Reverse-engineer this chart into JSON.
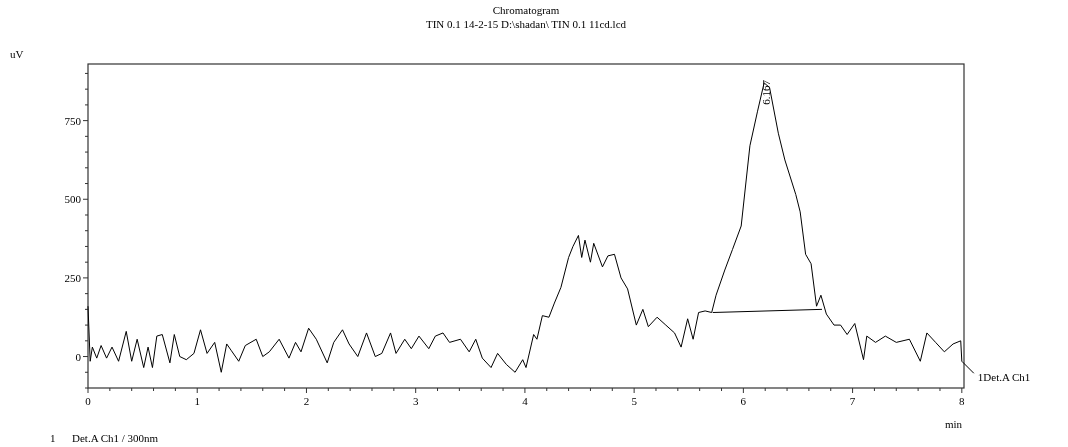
{
  "chart_data": {
    "type": "line",
    "title": "Chromatogram",
    "subtitle": "TIN 0.1 14-2-15 D:\\shadan\\ TIN 0.1 11cd.lcd",
    "xlabel": "min",
    "ylabel": "uV",
    "xlim": [
      0,
      8.02
    ],
    "ylim": [
      -100,
      930
    ],
    "xticks": [
      0,
      {
        "value": 0.2,
        "label": null
      },
      {
        "value": 0.4,
        "label": null
      },
      {
        "value": 0.6,
        "label": null
      },
      {
        "value": 0.8,
        "label": null
      },
      1,
      {
        "value": 1.2,
        "label": null
      },
      {
        "value": 1.4,
        "label": null
      },
      {
        "value": 1.6,
        "label": null
      },
      {
        "value": 1.8,
        "label": null
      },
      2,
      {
        "value": 2.2,
        "label": null
      },
      {
        "value": 2.4,
        "label": null
      },
      {
        "value": 2.6,
        "label": null
      },
      {
        "value": 2.8,
        "label": null
      },
      3,
      {
        "value": 3.2,
        "label": null
      },
      {
        "value": 3.4,
        "label": null
      },
      {
        "value": 3.6,
        "label": null
      },
      {
        "value": 3.8,
        "label": null
      },
      4,
      {
        "value": 4.2,
        "label": null
      },
      {
        "value": 4.4,
        "label": null
      },
      {
        "value": 4.6,
        "label": null
      },
      {
        "value": 4.8,
        "label": null
      },
      5,
      {
        "value": 5.2,
        "label": null
      },
      {
        "value": 5.4,
        "label": null
      },
      {
        "value": 5.6,
        "label": null
      },
      {
        "value": 5.8,
        "label": null
      },
      6,
      {
        "value": 6.2,
        "label": null
      },
      {
        "value": 6.4,
        "label": null
      },
      {
        "value": 6.6,
        "label": null
      },
      {
        "value": 6.8,
        "label": null
      },
      7,
      {
        "value": 7.2,
        "label": null
      },
      {
        "value": 7.4,
        "label": null
      },
      {
        "value": 7.6,
        "label": null
      },
      {
        "value": 7.8,
        "label": null
      },
      8
    ],
    "yticks": [
      {
        "value": -100,
        "label": null
      },
      {
        "value": -50,
        "label": null
      },
      0,
      {
        "value": 50,
        "label": null
      },
      {
        "value": 100,
        "label": null
      },
      {
        "value": 150,
        "label": null
      },
      {
        "value": 200,
        "label": null
      },
      250,
      {
        "value": 300,
        "label": null
      },
      {
        "value": 350,
        "label": null
      },
      {
        "value": 400,
        "label": null
      },
      {
        "value": 450,
        "label": null
      },
      500,
      {
        "value": 550,
        "label": null
      },
      {
        "value": 600,
        "label": null
      },
      {
        "value": 650,
        "label": null
      },
      {
        "value": 700,
        "label": null
      },
      750,
      {
        "value": 800,
        "label": null
      },
      {
        "value": 850,
        "label": null
      },
      {
        "value": 900,
        "label": null
      }
    ],
    "grid": false,
    "legend": "right",
    "marker": "none",
    "line_style": "solid",
    "series": [
      {
        "name": "1Det.A Ch1",
        "color": "#000000",
        "x": [
          0,
          0.02,
          0.04,
          0.08,
          0.12,
          0.17,
          0.22,
          0.28,
          0.35,
          0.4,
          0.45,
          0.51,
          0.55,
          0.59,
          0.63,
          0.68,
          0.75,
          0.79,
          0.84,
          0.9,
          0.97,
          1.03,
          1.09,
          1.16,
          1.22,
          1.27,
          1.31,
          1.38,
          1.44,
          1.54,
          1.6,
          1.66,
          1.75,
          1.84,
          1.9,
          1.95,
          2.02,
          2.09,
          2.19,
          2.25,
          2.33,
          2.39,
          2.47,
          2.55,
          2.63,
          2.69,
          2.77,
          2.82,
          2.9,
          2.96,
          3.03,
          3.12,
          3.18,
          3.25,
          3.31,
          3.41,
          3.49,
          3.55,
          3.61,
          3.69,
          3.75,
          3.83,
          3.91,
          3.98,
          4.01,
          4.08,
          4.11,
          4.16,
          4.22,
          4.27,
          4.33,
          4.4,
          4.44,
          4.49,
          4.52,
          4.55,
          4.6,
          4.63,
          4.71,
          4.76,
          4.82,
          4.88,
          4.94,
          5.02,
          5.08,
          5.13,
          5.21,
          5.29,
          5.37,
          5.43,
          5.49,
          5.54,
          5.59,
          5.65,
          5.71,
          5.75,
          5.83,
          5.9,
          5.98,
          6.06,
          6.13,
          6.19,
          6.24,
          6.32,
          6.38,
          6.48,
          6.52,
          6.57,
          6.62,
          6.67,
          6.71,
          6.76,
          6.83,
          6.89,
          6.95,
          7.02,
          7.1,
          7.13,
          7.21,
          7.3,
          7.4,
          7.52,
          7.62,
          7.68,
          7.76,
          7.84,
          7.92,
          7.99,
          8
        ],
        "values": [
          160,
          -15,
          30,
          -5,
          35,
          -5,
          30,
          -15,
          80,
          -15,
          55,
          -35,
          30,
          -35,
          65,
          70,
          -20,
          70,
          0,
          -10,
          10,
          85,
          10,
          45,
          -50,
          40,
          20,
          -15,
          35,
          55,
          0,
          15,
          55,
          -5,
          45,
          15,
          90,
          55,
          -20,
          45,
          85,
          40,
          0,
          75,
          0,
          10,
          75,
          10,
          55,
          25,
          65,
          25,
          65,
          75,
          45,
          55,
          15,
          55,
          -5,
          -35,
          10,
          -25,
          -50,
          -10,
          -35,
          70,
          55,
          130,
          125,
          170,
          220,
          315,
          350,
          385,
          315,
          370,
          300,
          360,
          285,
          320,
          325,
          250,
          215,
          100,
          150,
          95,
          125,
          100,
          75,
          30,
          120,
          55,
          140,
          145,
          140,
          195,
          275,
          340,
          415,
          670,
          780,
          870,
          855,
          710,
          625,
          515,
          460,
          325,
          295,
          160,
          195,
          135,
          100,
          100,
          70,
          105,
          -10,
          65,
          45,
          65,
          45,
          55,
          -15,
          75,
          45,
          15,
          40,
          50,
          -15
        ]
      },
      {
        "color": "#000000",
        "x": [
          5.72,
          6.72
        ],
        "values": [
          140,
          150
        ]
      }
    ],
    "annotations": [
      {
        "text": "6.167",
        "x": 6.167,
        "y": 870
      },
      "1      Det.A Ch1 / 300nm"
    ]
  }
}
